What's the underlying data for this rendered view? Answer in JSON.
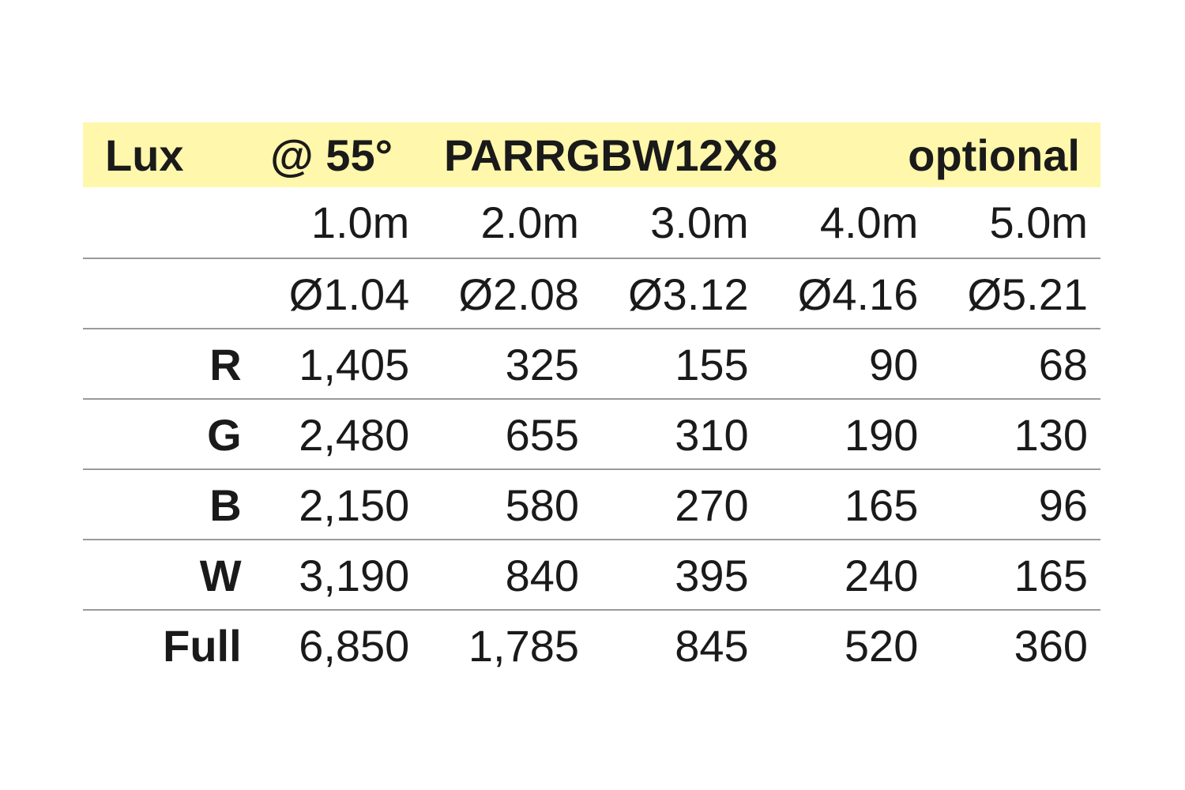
{
  "header": {
    "label": "Lux",
    "angle": "@ 55°",
    "model": "PARRGBW12X8",
    "note": "optional",
    "background_color": "#fff7ab"
  },
  "table": {
    "columns": [
      "1.0m",
      "2.0m",
      "3.0m",
      "4.0m",
      "5.0m"
    ],
    "diameters": [
      "Ø1.04",
      "Ø2.08",
      "Ø3.12",
      "Ø4.16",
      "Ø5.21"
    ],
    "rows": [
      {
        "label": "R",
        "values": [
          "1,405",
          "325",
          "155",
          "90",
          "68"
        ]
      },
      {
        "label": "G",
        "values": [
          "2,480",
          "655",
          "310",
          "190",
          "130"
        ]
      },
      {
        "label": "B",
        "values": [
          "2,150",
          "580",
          "270",
          "165",
          "96"
        ]
      },
      {
        "label": "W",
        "values": [
          "3,190",
          "840",
          "395",
          "240",
          "165"
        ]
      },
      {
        "label": "Full",
        "values": [
          "6,850",
          "1,785",
          "845",
          "520",
          "360"
        ]
      }
    ]
  }
}
